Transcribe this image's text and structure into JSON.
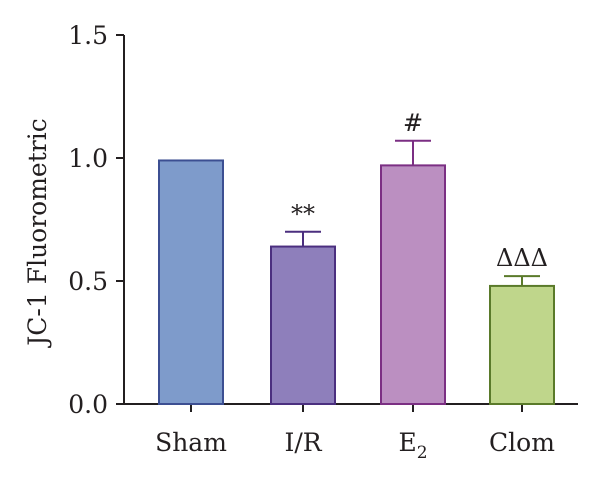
{
  "chart_data": {
    "type": "bar",
    "title": "",
    "xlabel": "",
    "ylabel": "JC-1 Fluorometric",
    "ylim": [
      0,
      1.5
    ],
    "yticks": [
      0.0,
      0.5,
      1.0,
      1.5
    ],
    "ytick_labels": [
      "0.0",
      "0.5",
      "1.0",
      "1.5"
    ],
    "grid": false,
    "categories": [
      {
        "label": "Sham",
        "main": "Sham",
        "subscript": ""
      },
      {
        "label": "I/R",
        "main": "I/R",
        "subscript": ""
      },
      {
        "label": "E2",
        "main": "E",
        "subscript": "2"
      },
      {
        "label": "Clom",
        "main": "Clom",
        "subscript": ""
      }
    ],
    "values": [
      0.99,
      0.64,
      0.97,
      0.48
    ],
    "errors": [
      0,
      0.06,
      0.1,
      0.04
    ],
    "annotations": [
      "",
      "**",
      "#",
      "ΔΔΔ"
    ],
    "colors": [
      "#7e9bcb",
      "#8e7fbb",
      "#bb8fc1",
      "#bfd68b"
    ],
    "edge_colors": [
      "#3c4f92",
      "#4b2f7f",
      "#7b2f83",
      "#5a7a2a"
    ]
  }
}
